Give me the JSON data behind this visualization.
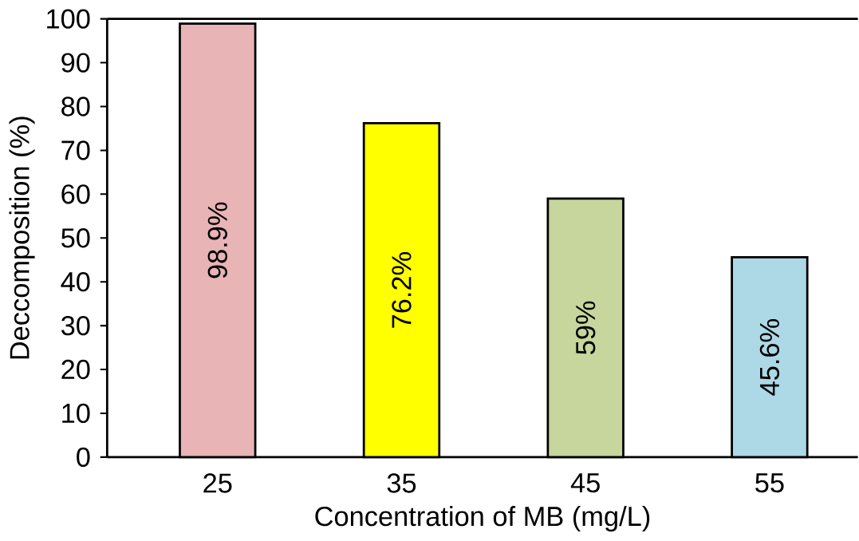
{
  "chart_data": {
    "type": "bar",
    "xlabel": "Concentration of MB (mg/L)",
    "ylabel": "Deccomposition (%)",
    "categories": [
      "25",
      "35",
      "45",
      "55"
    ],
    "values": [
      98.9,
      76.2,
      59,
      45.6
    ],
    "colors": [
      "#e8b4b6",
      "#ffff00",
      "#c6d69c",
      "#add8e6"
    ],
    "value_labels": [
      "98.9%",
      "76.2%",
      "59%",
      "45.6%"
    ],
    "ylim": [
      0,
      100
    ],
    "yticks": [
      0,
      10,
      20,
      30,
      40,
      50,
      60,
      70,
      80,
      90,
      100
    ]
  }
}
